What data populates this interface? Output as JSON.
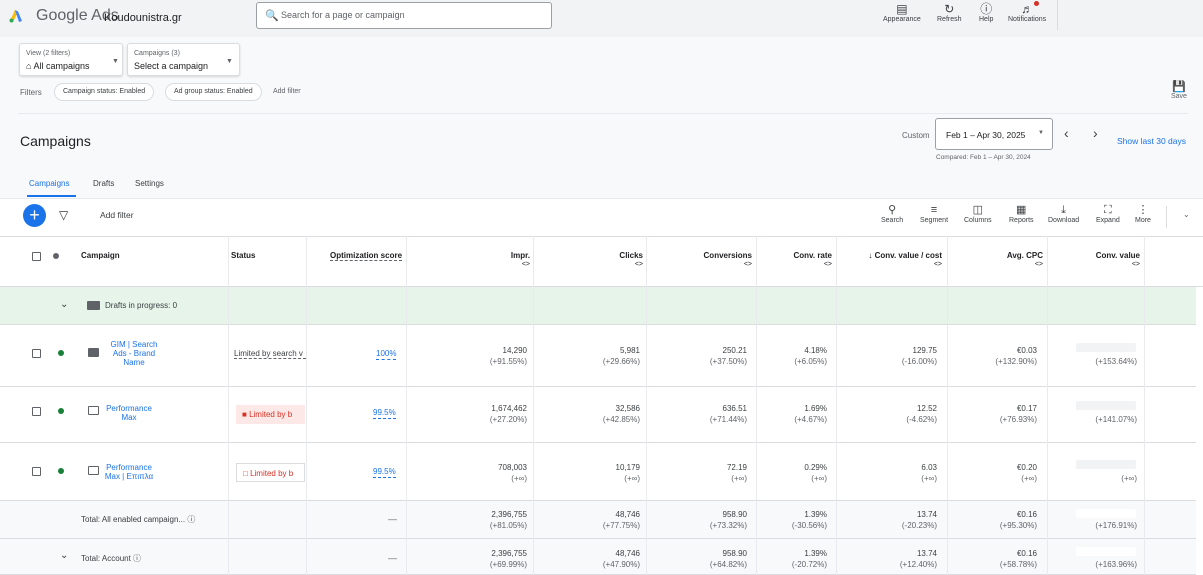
{
  "app": {
    "brand": "Google Ads",
    "account": "Koudounistra.gr",
    "search_placeholder": "Search for a page or campaign"
  },
  "top_tools": [
    {
      "label": "Appearance",
      "icon": "appearance-icon"
    },
    {
      "label": "Refresh",
      "icon": "refresh-icon"
    },
    {
      "label": "Help",
      "icon": "help-icon"
    },
    {
      "label": "Notifications",
      "icon": "bell-icon"
    }
  ],
  "view": {
    "small": "View (2 filters)",
    "value": "All campaigns"
  },
  "campaign_picker": {
    "small": "Campaigns (3)",
    "value": "Select a campaign"
  },
  "filters": {
    "label": "Filters",
    "chips": [
      "Campaign status: Enabled",
      "Ad group status: Enabled"
    ],
    "add": "Add filter",
    "save": "Save"
  },
  "page": {
    "title": "Campaigns",
    "custom": "Custom",
    "date": "Feb 1 – Apr 30, 2025",
    "compared": "Compared: Feb 1 – Apr 30, 2024",
    "show_last": "Show last 30 days"
  },
  "tabs": [
    "Campaigns",
    "Drafts",
    "Settings"
  ],
  "toolbar": {
    "add_filter": "Add filter",
    "tools": [
      "Search",
      "Segment",
      "Columns",
      "Reports",
      "Download",
      "Expand",
      "More"
    ]
  },
  "columns": [
    "Campaign",
    "Status",
    "Optimization score",
    "Impr.",
    "Clicks",
    "Conversions",
    "Conv. rate",
    "↓ Conv. value / cost",
    "Avg. CPC",
    "Conv. value"
  ],
  "sort_glyph": "<>",
  "drafts": "Drafts in progress: 0",
  "rows": [
    {
      "name": "GIM | Search Ads - Brand Name",
      "status": "Limited by search v",
      "opt": "100%",
      "impr": "14,290",
      "impr_d": "(+91.55%)",
      "clicks": "5,981",
      "clicks_d": "(+29.66%)",
      "conv": "250.21",
      "conv_d": "(+37.50%)",
      "rate": "4.18%",
      "rate_d": "(+6.05%)",
      "cvc": "129.75",
      "cvc_d": "(-16.00%)",
      "cpc": "€0.03",
      "cpc_d": "(+132.90%)",
      "cv_d": "(+153.64%)"
    },
    {
      "name": "Performance Max",
      "status": "Limited by b",
      "opt": "99.5%",
      "impr": "1,674,462",
      "impr_d": "(+27.20%)",
      "clicks": "32,586",
      "clicks_d": "(+42.85%)",
      "conv": "636.51",
      "conv_d": "(+71.44%)",
      "rate": "1.69%",
      "rate_d": "(+4.67%)",
      "cvc": "12.52",
      "cvc_d": "(-4.62%)",
      "cpc": "€0.17",
      "cpc_d": "(+76.93%)",
      "cv_d": "(+141.07%)"
    },
    {
      "name": "Performance Max | Επιπλα",
      "status": "Limited by b",
      "opt": "99.5%",
      "impr": "708,003",
      "impr_d": "(+∞)",
      "clicks": "10,179",
      "clicks_d": "(+∞)",
      "conv": "72.19",
      "conv_d": "(+∞)",
      "rate": "0.29%",
      "rate_d": "(+∞)",
      "cvc": "6.03",
      "cvc_d": "(+∞)",
      "cpc": "€0.20",
      "cpc_d": "(+∞)",
      "cv_d": "(+∞)"
    }
  ],
  "totals": [
    {
      "label": "Total: All enabled campaign...",
      "opt": "—",
      "impr": "2,396,755",
      "impr_d": "(+81.05%)",
      "clicks": "48,746",
      "clicks_d": "(+77.75%)",
      "conv": "958.90",
      "conv_d": "(+73.32%)",
      "rate": "1.39%",
      "rate_d": "(-30.56%)",
      "cvc": "13.74",
      "cvc_d": "(-20.23%)",
      "cpc": "€0.16",
      "cpc_d": "(+95.30%)",
      "cv_d": "(+176.91%)"
    },
    {
      "label": "Total: Account",
      "opt": "—",
      "impr": "2,396,755",
      "impr_d": "(+69.99%)",
      "clicks": "48,746",
      "clicks_d": "(+47.90%)",
      "conv": "958.90",
      "conv_d": "(+64.82%)",
      "rate": "1.39%",
      "rate_d": "(-20.72%)",
      "cvc": "13.74",
      "cvc_d": "(+12.40%)",
      "cpc": "€0.16",
      "cpc_d": "(+58.78%)",
      "cv_d": "(+163.96%)"
    }
  ],
  "colors": {
    "accent": "#1a73e8",
    "enabled": "#188038",
    "limited": "#d93025",
    "drafts_bg": "#e6f4ea"
  }
}
